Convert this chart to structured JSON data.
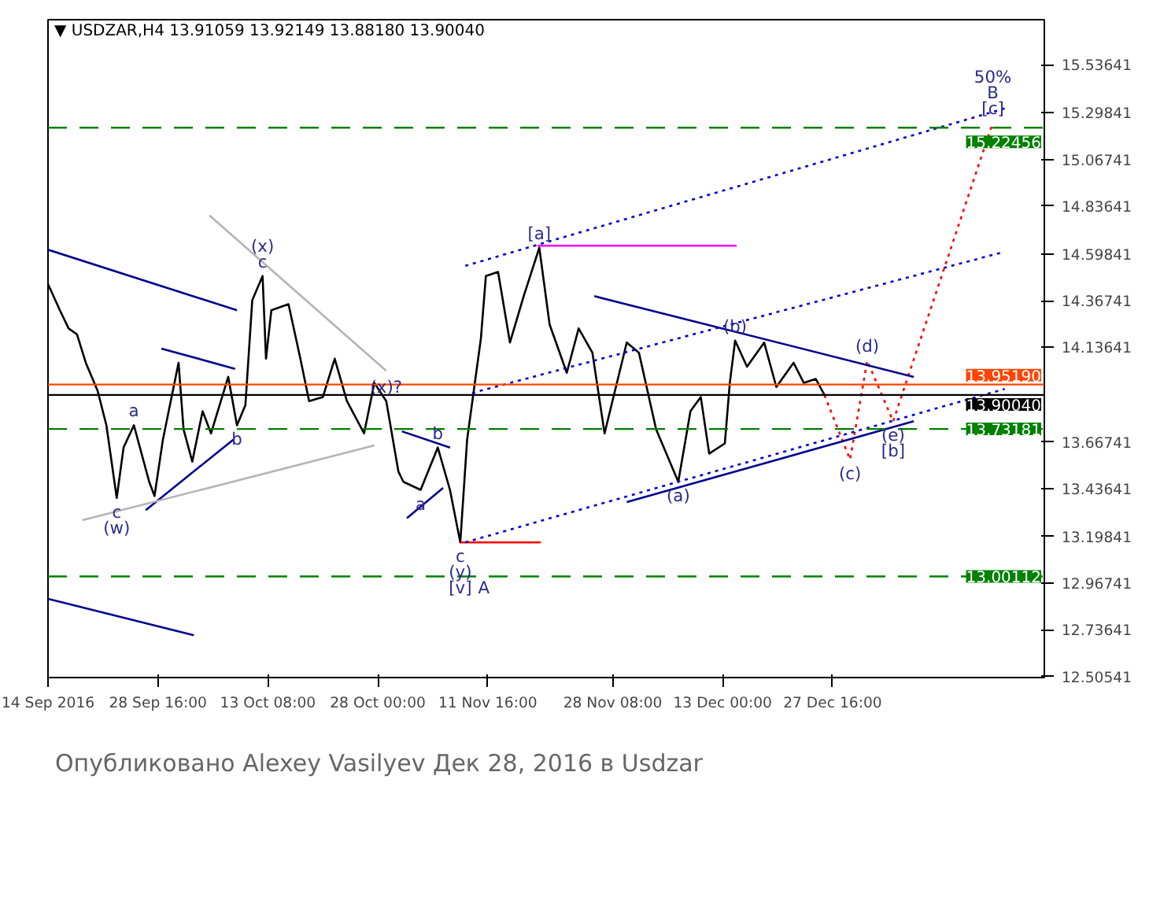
{
  "chart_data": {
    "type": "line",
    "title": "▼ USDZAR,H4  13.91059 13.92149 13.88180 13.90040",
    "xlim": [
      "2016-09-14T00:00",
      "2017-01-24T22:00"
    ],
    "ylim": [
      12.5,
      15.76
    ],
    "xticks": [
      {
        "value": "2016-09-14T00:00",
        "label": "14 Sep 2016"
      },
      {
        "value": "2016-09-28T16:00",
        "label": "28 Sep 16:00"
      },
      {
        "value": "2016-10-13T08:00",
        "label": "13 Oct 08:00"
      },
      {
        "value": "2016-10-28T00:00",
        "label": "28 Oct 00:00"
      },
      {
        "value": "2016-11-11T16:00",
        "label": "11 Nov 16:00"
      },
      {
        "value": "2016-11-28T08:00",
        "label": "28 Nov 08:00"
      },
      {
        "value": "2016-12-13T00:00",
        "label": "13 Dec 00:00"
      },
      {
        "value": "2016-12-27T16:00",
        "label": "27 Dec 16:00"
      }
    ],
    "yticks": [
      12.50541,
      12.73641,
      12.96741,
      13.19841,
      13.43641,
      13.66741,
      14.13641,
      14.36741,
      14.59841,
      14.83641,
      15.06741,
      15.29841,
      15.53641
    ],
    "grid": false,
    "series": [
      {
        "color": "#000000",
        "line_style": "solid",
        "x": [
          "2016-09-14T00:00",
          "2016-09-15T14:00",
          "2016-09-16T18:00",
          "2016-09-17T21:00",
          "2016-09-19T01:00",
          "2016-09-20T15:00",
          "2016-09-21T19:00",
          "2016-09-23T04:00",
          "2016-09-24T02:00",
          "2016-09-25T11:00",
          "2016-09-27T12:00",
          "2016-09-28T05:00",
          "2016-09-29T08:00",
          "2016-10-01T10:00",
          "2016-10-02T02:00",
          "2016-10-03T06:00",
          "2016-10-04T15:00",
          "2016-10-05T18:00",
          "2016-10-08T01:00",
          "2016-10-09T05:00",
          "2016-10-10T08:00",
          "2016-10-11T06:00",
          "2016-10-12T15:00",
          "2016-10-13T02:00",
          "2016-10-13T19:00",
          "2016-10-16T02:00",
          "2016-10-17T16:00",
          "2016-10-18T20:00",
          "2016-10-20T16:00",
          "2016-10-22T06:00",
          "2016-10-23T21:00",
          "2016-10-26T04:00",
          "2016-10-27T13:00",
          "2016-10-29T03:00",
          "2016-10-30T18:00",
          "2016-10-31T10:00",
          "2016-11-02T17:00",
          "2016-11-05T00:00",
          "2016-11-06T15:00",
          "2016-11-08T00:00",
          "2016-11-08T22:00",
          "2016-11-10T18:00",
          "2016-11-11T10:00",
          "2016-11-13T01:00",
          "2016-11-14T15:00",
          "2016-11-16T11:00",
          "2016-11-18T13:00",
          "2016-11-19T22:00",
          "2016-11-22T05:00",
          "2016-11-23T19:00",
          "2016-11-25T15:00",
          "2016-11-27T06:00",
          "2016-11-30T05:00",
          "2016-12-01T20:00",
          "2016-12-04T03:00",
          "2016-12-07T02:00",
          "2016-12-08T17:00",
          "2016-12-10T02:00",
          "2016-12-11T05:00",
          "2016-12-13T07:00",
          "2016-12-13T23:00",
          "2016-12-14T16:00",
          "2016-12-16T06:00",
          "2016-12-18T13:00",
          "2016-12-20T04:00",
          "2016-12-22T11:00",
          "2016-12-23T20:00",
          "2016-12-25T10:00",
          "2016-12-26T14:00"
        ],
        "values": [
          14.45,
          14.32,
          14.23,
          14.2,
          14.06,
          13.92,
          13.75,
          13.39,
          13.64,
          13.75,
          13.47,
          13.4,
          13.68,
          14.06,
          13.73,
          13.57,
          13.82,
          13.71,
          13.99,
          13.75,
          13.85,
          14.37,
          14.49,
          14.08,
          14.32,
          14.35,
          14.08,
          13.87,
          13.89,
          14.08,
          13.87,
          13.71,
          13.96,
          13.87,
          13.52,
          13.47,
          13.43,
          13.64,
          13.43,
          13.17,
          13.68,
          14.18,
          14.49,
          14.51,
          14.16,
          14.39,
          14.63,
          14.25,
          14.01,
          14.23,
          14.11,
          13.71,
          14.16,
          14.11,
          13.73,
          13.47,
          13.82,
          13.89,
          13.61,
          13.66,
          13.96,
          14.17,
          14.04,
          14.16,
          13.94,
          14.06,
          13.96,
          13.98,
          13.9
        ]
      },
      {
        "color": "#ff0000",
        "line_style": "dotted",
        "x": [
          "2016-12-26T14:00",
          "2016-12-30T00:00",
          "2017-01-01T07:00",
          "2017-01-04T18:00",
          "2017-01-18T01:00"
        ],
        "values": [
          13.9,
          13.58,
          14.07,
          13.77,
          15.25
        ]
      },
      {
        "color": "#00008b",
        "line_style": "solid",
        "x": [
          "2016-09-14T00:00",
          "2016-10-09T05:00"
        ],
        "values": [
          14.62,
          14.32
        ]
      },
      {
        "color": "#00008b",
        "line_style": "solid",
        "x": [
          "2016-09-29T03:00",
          "2016-10-08T23:00"
        ],
        "values": [
          14.13,
          14.03
        ]
      },
      {
        "color": "#00008b",
        "line_style": "solid",
        "x": [
          "2016-09-27T01:00",
          "2016-10-08T18:00"
        ],
        "values": [
          13.33,
          13.68
        ]
      },
      {
        "color": "#b4b4b4",
        "line_style": "solid",
        "x": [
          "2016-09-18T14:00",
          "2016-10-27T13:00"
        ],
        "values": [
          13.28,
          13.65
        ]
      },
      {
        "color": "#b4b4b4",
        "line_style": "solid",
        "x": [
          "2016-10-05T13:00",
          "2016-10-29T03:00"
        ],
        "values": [
          14.79,
          14.02
        ]
      },
      {
        "color": "#00008b",
        "line_style": "solid",
        "x": [
          "2016-10-31T21:00",
          "2016-11-05T17:00"
        ],
        "values": [
          13.29,
          13.44
        ]
      },
      {
        "color": "#00008b",
        "line_style": "solid",
        "x": [
          "2016-10-31T05:00",
          "2016-11-06T15:00"
        ],
        "values": [
          13.72,
          13.64
        ]
      },
      {
        "color": "#ff0000",
        "line_style": "solid",
        "x": [
          "2016-11-08T00:00",
          "2016-11-18T18:00"
        ],
        "values": [
          13.17,
          13.17
        ]
      },
      {
        "color": "#ff00ff",
        "line_style": "solid",
        "x": [
          "2016-11-18T07:00",
          "2016-12-14T21:00"
        ],
        "values": [
          14.64,
          14.64
        ]
      },
      {
        "color": "#0000cd",
        "line_style": "dotted",
        "x": [
          "2016-11-08T16:00",
          "2017-01-19T15:00"
        ],
        "values": [
          13.17,
          13.93
        ]
      },
      {
        "color": "#0000cd",
        "line_style": "dotted",
        "x": [
          "2016-11-08T16:00",
          "2017-01-19T15:00"
        ],
        "values": [
          14.54,
          15.32
        ]
      },
      {
        "color": "#0000cd",
        "line_style": "dotted",
        "x": [
          "2016-11-09T14:00",
          "2017-01-19T15:00"
        ],
        "values": [
          13.91,
          14.61
        ]
      },
      {
        "color": "#00008b",
        "line_style": "solid",
        "x": [
          "2016-11-25T21:00",
          "2017-01-07T12:00"
        ],
        "values": [
          14.39,
          13.99
        ]
      },
      {
        "color": "#00008b",
        "line_style": "solid",
        "x": [
          "2016-11-30T05:00",
          "2017-01-07T12:00"
        ],
        "values": [
          13.37,
          13.77
        ]
      },
      {
        "color": "#00008b",
        "line_style": "solid",
        "x": [
          "2016-09-14T00:00",
          "2016-10-03T11:00"
        ],
        "values": [
          12.89,
          12.71
        ]
      }
    ],
    "ref_lines": [
      {
        "axis": "y",
        "value": 15.22456,
        "label": "15.22456",
        "color": "#008000",
        "line_style": "dashed"
      },
      {
        "axis": "y",
        "value": 13.9519,
        "label": "13.95190",
        "color": "#ff4500",
        "line_style": "solid"
      },
      {
        "axis": "y",
        "value": 13.9004,
        "label": "13.90040",
        "color": "#000000",
        "line_style": "solid"
      },
      {
        "axis": "y",
        "value": 13.73181,
        "label": "13.73181",
        "color": "#008000",
        "line_style": "dashed"
      },
      {
        "axis": "y",
        "value": 13.00112,
        "label": "13.00112",
        "color": "#008000",
        "line_style": "dashed"
      }
    ],
    "annotations": [
      {
        "text": "c",
        "x": "2016-10-12T15:00",
        "y": 14.49
      },
      {
        "text": "(x)",
        "x": "2016-10-12T15:00",
        "y": 14.49
      },
      {
        "text": "(x)?",
        "x": "2016-10-29T03:00",
        "y": 13.87
      },
      {
        "text": "a",
        "x": "2016-09-25T11:00",
        "y": 13.75
      },
      {
        "text": "b",
        "x": "2016-10-09T05:00",
        "y": 13.75
      },
      {
        "text": "c",
        "x": "2016-09-23T04:00",
        "y": 13.39
      },
      {
        "text": "(w)",
        "x": "2016-09-23T04:00",
        "y": 13.39
      },
      {
        "text": "b",
        "x": "2016-11-05T00:00",
        "y": 13.64
      },
      {
        "text": "a",
        "x": "2016-11-02T17:00",
        "y": 13.43
      },
      {
        "text": "c",
        "x": "2016-11-08T00:00",
        "y": 13.17
      },
      {
        "text": "(y)",
        "x": "2016-11-08T00:00",
        "y": 13.17
      },
      {
        "text": "[v]",
        "x": "2016-11-08T00:00",
        "y": 13.17
      },
      {
        "text": "A",
        "x": "2016-11-08T00:00",
        "y": 13.17
      },
      {
        "text": "[a]",
        "x": "2016-11-18T13:00",
        "y": 14.63
      },
      {
        "text": "(b)",
        "x": "2016-12-14T16:00",
        "y": 14.17
      },
      {
        "text": "(a)",
        "x": "2016-12-07T02:00",
        "y": 13.47
      },
      {
        "text": "(c)",
        "x": "2016-12-30T00:00",
        "y": 13.58
      },
      {
        "text": "(d)",
        "x": "2017-01-01T07:00",
        "y": 14.07
      },
      {
        "text": "(e)",
        "x": "2017-01-04T18:00",
        "y": 13.77
      },
      {
        "text": "[b]",
        "x": "2017-01-04T18:00",
        "y": 13.77
      },
      {
        "text": "[c]",
        "x": "2017-01-18T01:00",
        "y": 15.25
      },
      {
        "text": "B",
        "x": "2017-01-18T01:00",
        "y": 15.25
      },
      {
        "text": "50%",
        "x": "2017-01-18T01:00",
        "y": 15.25
      },
      "Опубликовано Alexey Vasilyev Дек 28, 2016 в Usdzar"
    ]
  }
}
